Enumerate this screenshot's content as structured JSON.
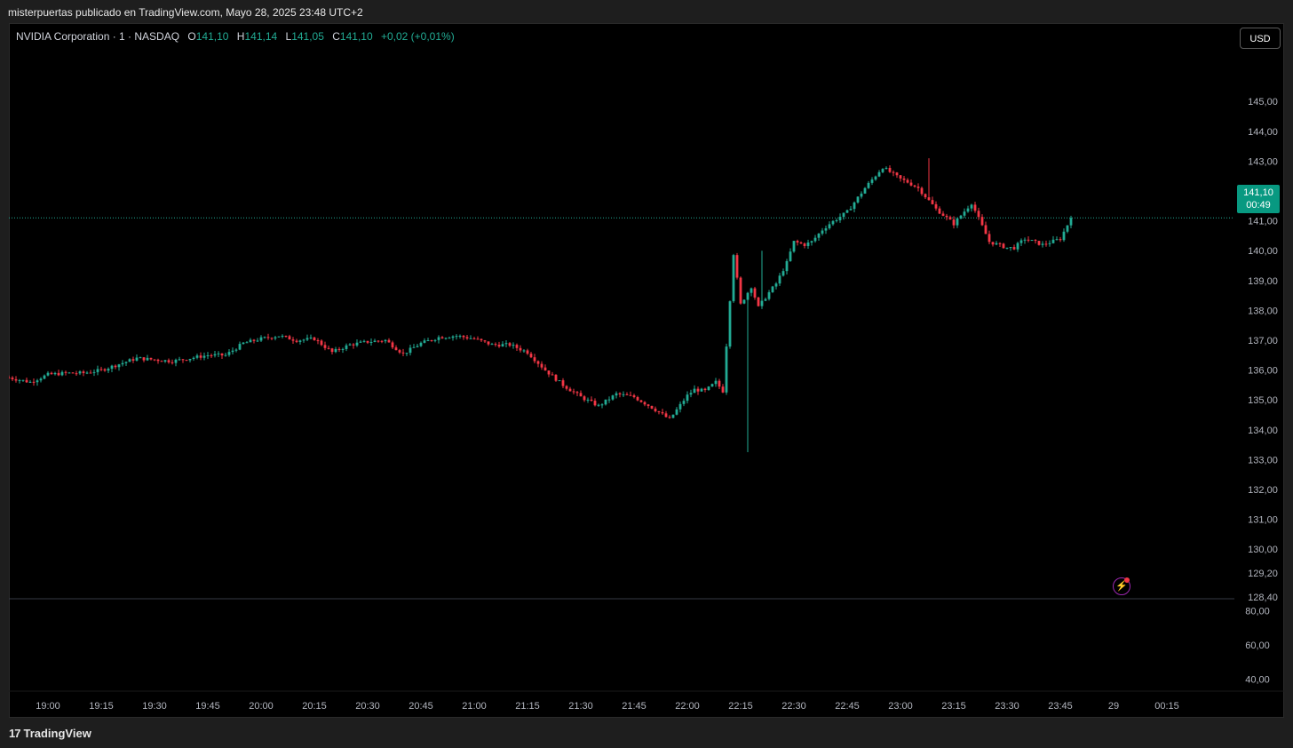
{
  "header": {
    "published_by": "misterpuertas publicado en TradingView.com, Mayo 28, 2025 23:48 UTC+2"
  },
  "legend": {
    "symbol": "NVIDIA Corporation · 1 · NASDAQ",
    "o_label": "O",
    "o_value": "141,10",
    "h_label": "H",
    "h_value": "141,14",
    "l_label": "L",
    "l_value": "141,05",
    "c_label": "C",
    "c_value": "141,10",
    "change": "+0,02 (+0,01%)"
  },
  "currency_button": "USD",
  "last_price": {
    "price": "141,10",
    "countdown": "00:49"
  },
  "footer": {
    "brand": "TradingView"
  },
  "colors": {
    "up": "#22ab94",
    "down": "#f23645",
    "background": "#000000",
    "text": "#d1d4dc",
    "price_tag": "#089981",
    "alert_icon": "#9c27b0"
  },
  "icons": {
    "alert": "lightning-alert-icon",
    "logo": "tradingview-logo-icon"
  },
  "chart_data": {
    "type": "candlestick",
    "symbol": "NVIDIA Corporation",
    "interval": "1",
    "exchange": "NASDAQ",
    "last": 141.1,
    "ylim": [
      128.4,
      145.9
    ],
    "y_ticks": [
      "145,00",
      "144,00",
      "143,00",
      "142,00",
      "141,00",
      "140,00",
      "139,00",
      "138,00",
      "137,00",
      "136,00",
      "135,00",
      "134,00",
      "133,00",
      "132,00",
      "131,00",
      "130,00",
      "129,20",
      "128,40"
    ],
    "y_tick_values": [
      145,
      144,
      143,
      142,
      141,
      140,
      139,
      138,
      137,
      136,
      135,
      134,
      133,
      132,
      131,
      130,
      129.2,
      128.4
    ],
    "x_ticks": [
      "19:00",
      "19:15",
      "19:30",
      "19:45",
      "20:00",
      "20:15",
      "20:30",
      "20:45",
      "21:00",
      "21:15",
      "21:30",
      "21:45",
      "22:00",
      "22:15",
      "22:30",
      "22:45",
      "23:00",
      "23:15",
      "23:30",
      "23:45",
      "29",
      "00:15"
    ],
    "x_tick_minutes": [
      0,
      15,
      30,
      45,
      60,
      75,
      90,
      105,
      120,
      135,
      150,
      165,
      180,
      195,
      210,
      225,
      240,
      255,
      270,
      285,
      300,
      315
    ],
    "x_range_minutes": [
      -11,
      334
    ],
    "series_path_minutes": [
      -11,
      -5,
      0,
      5,
      10,
      15,
      20,
      25,
      30,
      35,
      40,
      45,
      50,
      55,
      60,
      65,
      70,
      75,
      80,
      85,
      90,
      95,
      100,
      105,
      110,
      115,
      120,
      125,
      130,
      135,
      140,
      145,
      150,
      155,
      160,
      165,
      170,
      175,
      180,
      182,
      185,
      188,
      190,
      193,
      195,
      198,
      200,
      203,
      205,
      208,
      210,
      213,
      215,
      218,
      220,
      225,
      230,
      235,
      240,
      242,
      245,
      250,
      255,
      260,
      265,
      270,
      272,
      275,
      280,
      285,
      288
    ],
    "series_path_prices": [
      135.75,
      135.6,
      135.85,
      135.9,
      135.9,
      136.0,
      136.2,
      136.4,
      136.35,
      136.3,
      136.4,
      136.5,
      136.5,
      136.9,
      137.05,
      137.15,
      137.0,
      137.05,
      136.6,
      136.85,
      136.95,
      137.0,
      136.55,
      136.9,
      137.1,
      137.15,
      137.05,
      136.85,
      136.85,
      136.6,
      136.0,
      135.5,
      135.1,
      134.8,
      135.2,
      135.1,
      134.75,
      134.35,
      135.15,
      135.35,
      135.3,
      135.6,
      135.3,
      139.9,
      138.2,
      138.8,
      138.1,
      138.6,
      138.9,
      139.6,
      140.3,
      140.2,
      140.3,
      140.7,
      140.9,
      141.3,
      142.1,
      142.8,
      142.4,
      142.3,
      142.1,
      141.4,
      140.9,
      141.6,
      140.3,
      140.1,
      140.1,
      140.4,
      140.2,
      140.4,
      141.1
    ],
    "volume_panel": {
      "ylim": [
        34.0,
        87.0
      ],
      "y_ticks": [
        "80,00",
        "60,00",
        "40,00"
      ],
      "y_tick_values": [
        80,
        60,
        40
      ]
    }
  }
}
